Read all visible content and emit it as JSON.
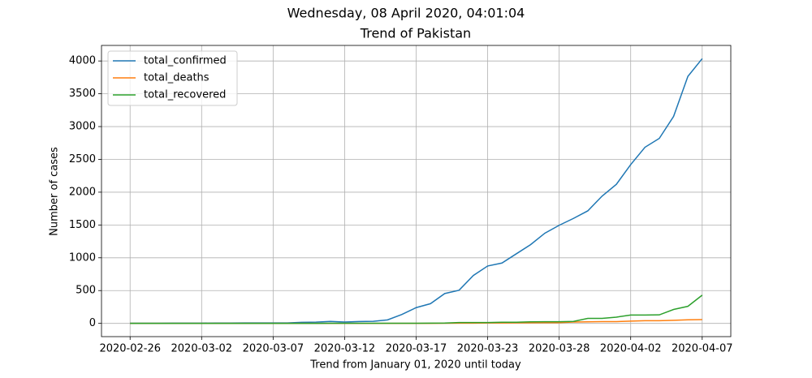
{
  "chart_data": {
    "type": "line",
    "suptitle": "Wednesday, 08 April 2020, 04:01:04",
    "title": "Trend of Pakistan",
    "xlabel": "Trend from January 01, 2020 until today",
    "ylabel": "Number of cases",
    "categories": [
      "2020-02-26",
      null,
      null,
      null,
      null,
      "2020-03-02",
      null,
      null,
      null,
      null,
      "2020-03-07",
      null,
      null,
      null,
      null,
      "2020-03-12",
      null,
      null,
      null,
      null,
      "2020-03-17",
      null,
      null,
      null,
      null,
      "2020-03-23",
      null,
      null,
      null,
      null,
      "2020-03-28",
      null,
      null,
      null,
      null,
      "2020-04-02",
      null,
      null,
      null,
      null,
      "2020-04-07"
    ],
    "series": [
      {
        "name": "total_confirmed",
        "color": "#1f77b4",
        "values": [
          2,
          2,
          2,
          4,
          4,
          4,
          5,
          5,
          6,
          6,
          6,
          7,
          16,
          19,
          30,
          20,
          28,
          31,
          53,
          136,
          240,
          300,
          455,
          505,
          730,
          875,
          920,
          1060,
          1200,
          1375,
          1495,
          1600,
          1715,
          1940,
          2120,
          2420,
          2685,
          2820,
          3155,
          3765,
          4035
        ]
      },
      {
        "name": "total_deaths",
        "color": "#ff7f0e",
        "values": [
          0,
          0,
          0,
          0,
          0,
          0,
          0,
          0,
          0,
          0,
          0,
          0,
          0,
          0,
          0,
          0,
          0,
          0,
          0,
          0,
          0,
          1,
          2,
          3,
          4,
          6,
          7,
          8,
          9,
          11,
          12,
          20,
          24,
          26,
          27,
          34,
          40,
          41,
          47,
          54,
          57
        ]
      },
      {
        "name": "total_recovered",
        "color": "#2ca02c",
        "values": [
          0,
          0,
          0,
          0,
          0,
          0,
          0,
          0,
          0,
          0,
          0,
          0,
          0,
          0,
          2,
          2,
          2,
          2,
          2,
          2,
          2,
          3,
          5,
          13,
          13,
          13,
          18,
          18,
          23,
          25,
          25,
          30,
          76,
          76,
          95,
          127,
          127,
          130,
          212,
          260,
          430
        ]
      }
    ],
    "xlim": [
      -2,
      42
    ],
    "ylim": [
      -202,
      4237
    ],
    "yticks": [
      0,
      500,
      1000,
      1500,
      2000,
      2500,
      3000,
      3500,
      4000
    ],
    "grid": true,
    "legend": "upper left"
  }
}
